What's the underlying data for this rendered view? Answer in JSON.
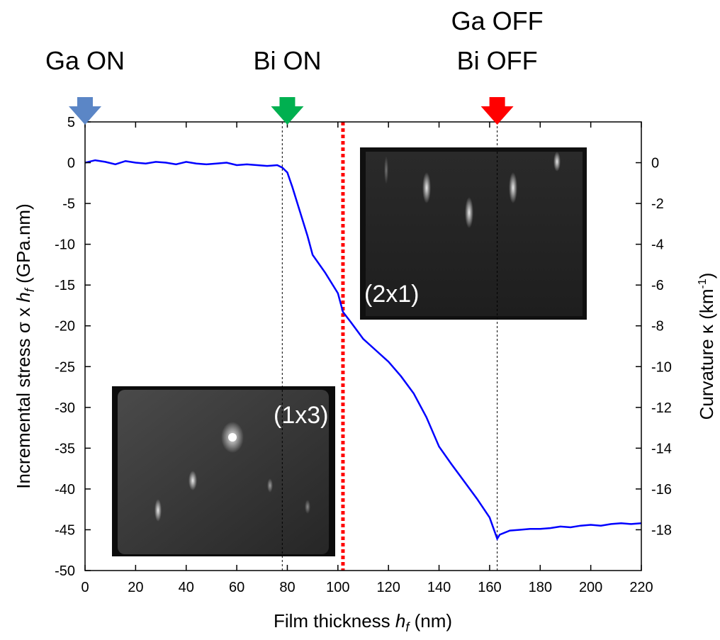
{
  "chart_data": {
    "type": "line",
    "xlabel": {
      "text": "Film thickness ",
      "var": "h",
      "sub": "f",
      "unit": " (nm)"
    },
    "ylabel": {
      "text": "Incremental stress σ x ",
      "var": "h",
      "sub": "f",
      "unit": " (GPa.nm)"
    },
    "y2label": {
      "text": "Curvature κ (km",
      "sup": "-1",
      "unit": ")"
    },
    "xlim": [
      0,
      220
    ],
    "xticks": [
      0,
      20,
      40,
      60,
      80,
      100,
      120,
      140,
      160,
      180,
      200,
      220
    ],
    "ylim": [
      -50,
      5
    ],
    "yticks": [
      5,
      0,
      -5,
      -10,
      -15,
      -20,
      -25,
      -30,
      -35,
      -40,
      -45,
      -50
    ],
    "y2lim": [
      -20,
      2
    ],
    "y2ticks": [
      0,
      -2,
      -4,
      -6,
      -8,
      -10,
      -12,
      -14,
      -16,
      -18
    ],
    "series": [
      {
        "color": "#0000ff",
        "x": [
          0,
          4,
          8,
          12,
          16,
          20,
          24,
          28,
          32,
          36,
          40,
          44,
          48,
          52,
          56,
          60,
          64,
          68,
          72,
          76,
          78,
          80,
          82,
          85,
          88,
          90,
          95,
          100,
          102,
          105,
          110,
          115,
          120,
          125,
          130,
          135,
          140,
          145,
          150,
          155,
          160,
          163,
          164,
          168,
          172,
          176,
          180,
          184,
          188,
          192,
          196,
          200,
          204,
          208,
          212,
          216,
          220
        ],
        "values": [
          0,
          0.3,
          0.1,
          -0.2,
          0.2,
          0,
          -0.1,
          0.1,
          0,
          -0.2,
          0.1,
          -0.1,
          -0.2,
          -0.1,
          0,
          -0.3,
          -0.2,
          -0.3,
          -0.4,
          -0.3,
          -0.6,
          -1.2,
          -3,
          -6,
          -9,
          -11.3,
          -13.5,
          -16,
          -18.3,
          -19.5,
          -21.6,
          -23,
          -24.4,
          -26.2,
          -28.3,
          -31.2,
          -34.8,
          -37,
          -39.1,
          -41.2,
          -43.5,
          -46.1,
          -45.6,
          -45.1,
          -45,
          -44.9,
          -44.9,
          -44.8,
          -44.6,
          -44.7,
          -44.5,
          -44.4,
          -44.5,
          -44.3,
          -44.2,
          -44.3,
          -44.2
        ]
      }
    ],
    "annotations": [
      {
        "lines": [
          "Ga ON"
        ],
        "x": 0,
        "color": "#5b86c6"
      },
      {
        "lines": [
          "Bi ON"
        ],
        "x": 80,
        "color": "#00b050"
      },
      {
        "lines": [
          "Ga OFF",
          "Bi OFF"
        ],
        "x": 163,
        "color": "#ff0000"
      }
    ],
    "dashed_lines": [
      78,
      163
    ],
    "boundary_line": {
      "x": 102,
      "color": "#ff0000"
    },
    "inset_labels": [
      "(2x1)",
      "(1x3)"
    ]
  }
}
